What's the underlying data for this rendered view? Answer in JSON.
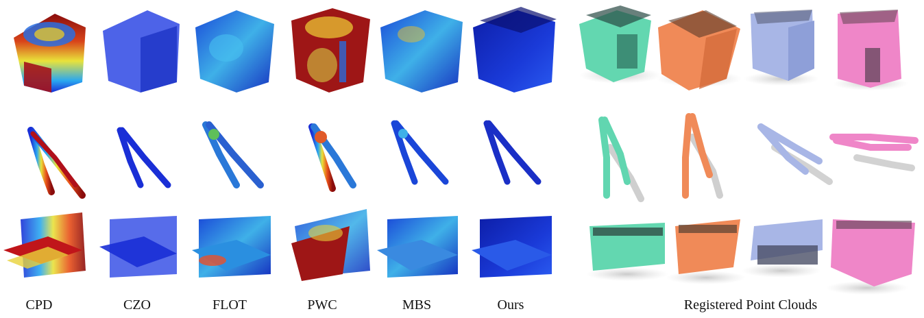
{
  "methods": [
    "CPD",
    "CZO",
    "FLOT",
    "PWC",
    "MBS",
    "Ours"
  ],
  "registered_label": "Registered Point Clouds",
  "rows": [
    "box",
    "pliers",
    "wall-bracket"
  ],
  "colors": {
    "cold": "#1a2fd6",
    "warm": "#c0151a",
    "teal": "#61d6b0",
    "orange": "#f08b59",
    "lavender": "#a8b6e6",
    "pink": "#ef86c8"
  }
}
